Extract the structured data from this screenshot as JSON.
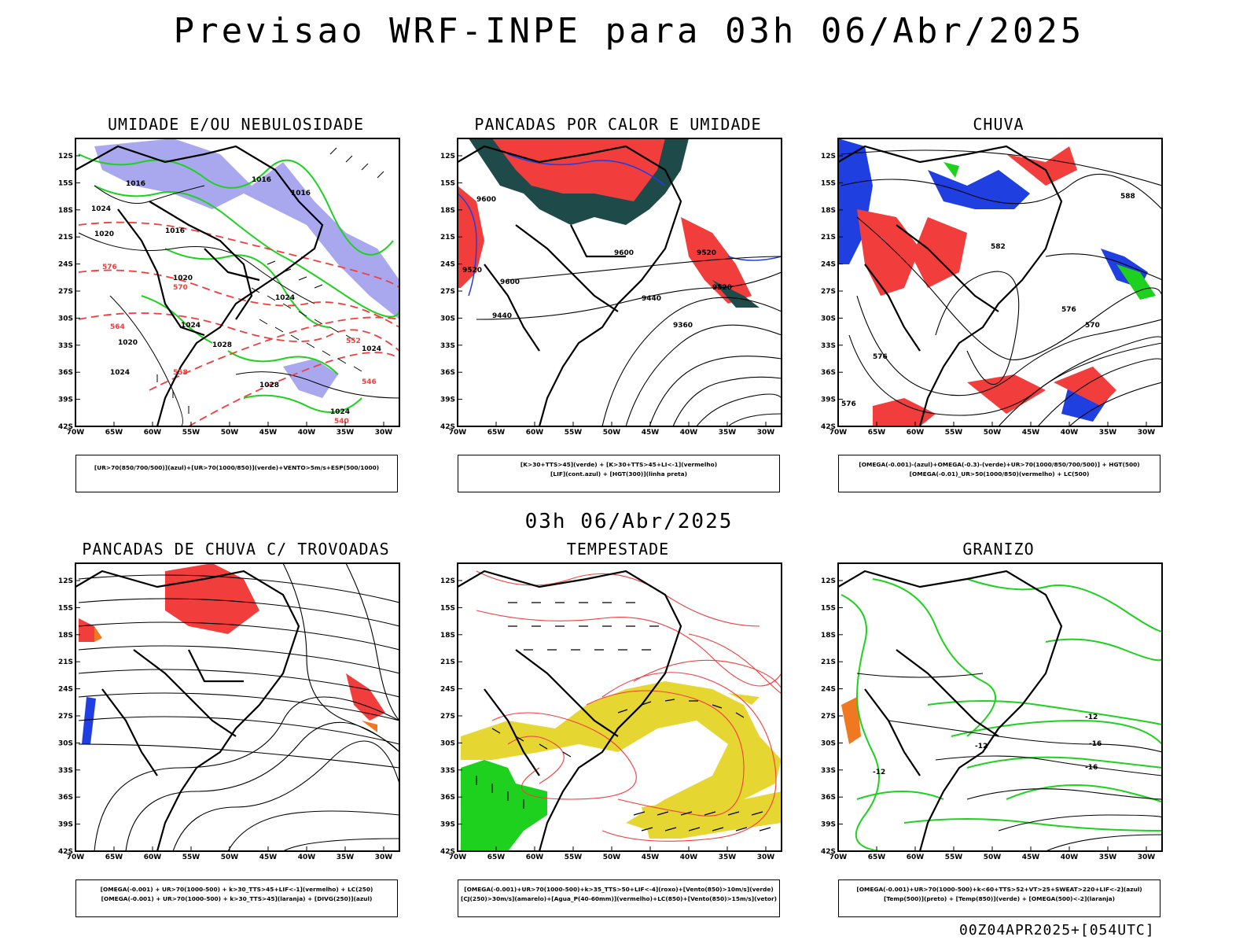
{
  "title": "Previsao WRF-INPE  para 03h 06/Abr/2025",
  "mid_date": "03h 06/Abr/2025",
  "footer": "00Z04APR2025+[054UTC]",
  "axes": {
    "lat_labels": [
      "12S",
      "15S",
      "18S",
      "21S",
      "24S",
      "27S",
      "30S",
      "33S",
      "36S",
      "39S",
      "42S"
    ],
    "lon_labels": [
      "70W",
      "65W",
      "60W",
      "55W",
      "50W",
      "45W",
      "40W",
      "35W",
      "30W"
    ]
  },
  "panels": [
    {
      "title": "UMIDADE E/OU NEBULOSIDADE",
      "legend": [
        "[UR>70(850/700/500)](azul)+[UR>70(1000/850)](verde)+VENTO>5m/s+ESP(500/1000)"
      ],
      "contour_labels": [
        "1016",
        "1016",
        "1016",
        "1024",
        "1020",
        "1016",
        "1020",
        "1024",
        "1024",
        "1020",
        "1024",
        "1028",
        "1024",
        "1028",
        "1024",
        "576",
        "570",
        "564",
        "558",
        "552",
        "546",
        "540"
      ]
    },
    {
      "title": "PANCADAS POR CALOR E UMIDADE",
      "legend": [
        "[K>30+TTS>45](verde)  +  [K>30+TTS>45+LI<-1](vermelho)",
        "[LIF](cont.azul)  +  [HGT(300)](linha preta)"
      ],
      "contour_labels": [
        "9600",
        "9520",
        "9600",
        "9600",
        "9520",
        "9520",
        "9440",
        "9440",
        "9360"
      ]
    },
    {
      "title": "CHUVA",
      "legend": [
        "[OMEGA(-0.001)-(azul)+OMEGA(-0.3)-(verde)+UR>70(1000/850/700/500)]  +  HGT(500)",
        "[OMEGA(-0.01)_UR>50(1000/850)(vermelho)  +  LC(500)"
      ],
      "contour_labels": [
        "588",
        "582",
        "576",
        "576",
        "570",
        "576"
      ]
    },
    {
      "title": "PANCADAS DE CHUVA C/ TROVOADAS",
      "legend": [
        "[OMEGA(-0.001)  +  UR>70(1000-500)  +  k>30_TTS>45+LIF<-1](vermelho)  +  LC(250)",
        "[OMEGA(-0.001)  +  UR>70(1000-500)  +  k>30_TTS>45](laranja)  +  [DIVG(250)](azul)"
      ]
    },
    {
      "title": "TEMPESTADE",
      "legend": [
        "[OMEGA(-0.001)+UR>70(1000-500)+k>35_TTS>50+LIF<-4](roxo)+[Vento(850)>10m/s](verde)",
        "[CJ(250)>30m/s](amarelo)+[Agua_P(40-60mm)](vermelho)+LC(850)+[Vento(850)>15m/s](vetor)"
      ]
    },
    {
      "title": "GRANIZO",
      "legend": [
        "[OMEGA(-0.001)+UR>70(1000-500)+k<60+TTS>52+VT>25+SWEAT>220+LIF<-2](azul)",
        "[Temp(500)](preto)  +  [Temp(850)](verde)  +  [OMEGA(500)<-2](laranja)"
      ],
      "contour_labels": [
        "-12",
        "-12",
        "-16",
        "-16",
        "-12"
      ]
    }
  ],
  "colors": {
    "blue_fill": "#a9a8ef",
    "green": "#1fd11f",
    "red": "#f23d3d",
    "dark_teal": "#1e4a4a",
    "yellow": "#e6d632",
    "blue": "#1f3fe0",
    "orange": "#f07820"
  }
}
